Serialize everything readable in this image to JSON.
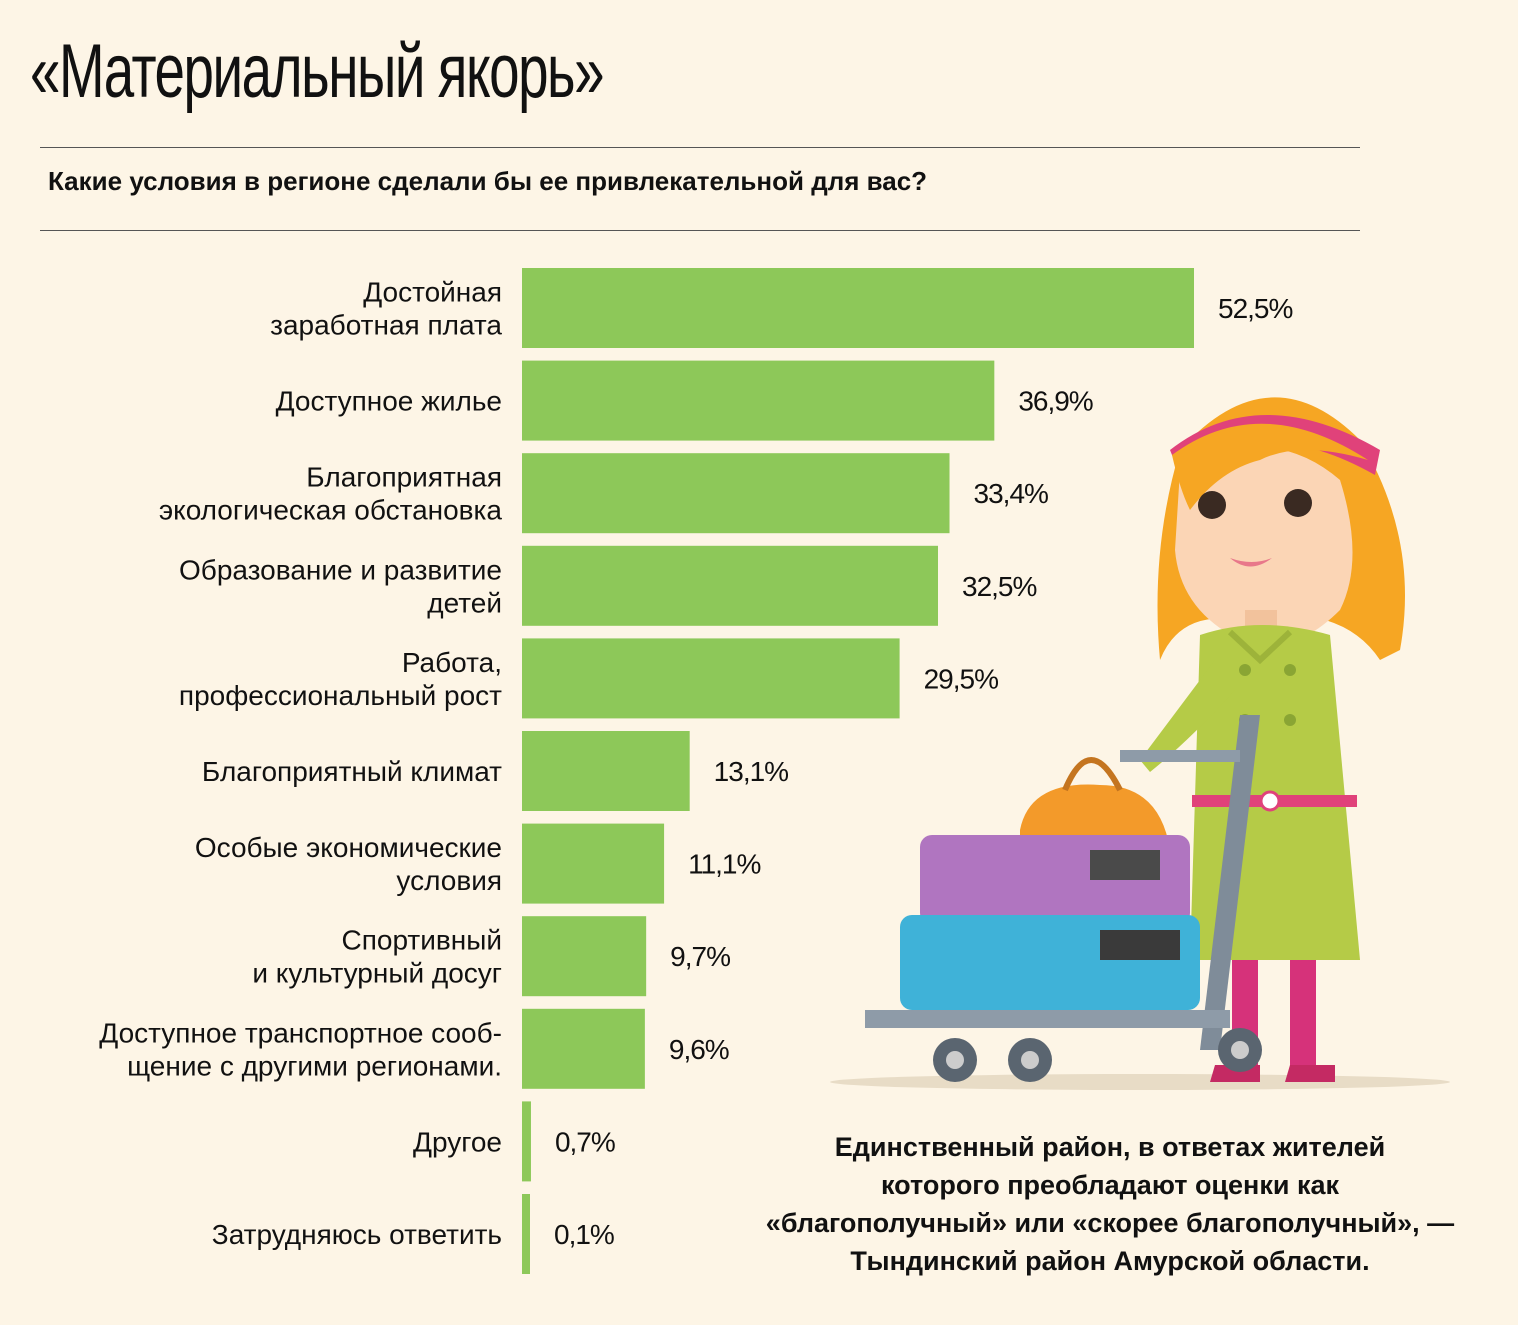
{
  "title": "«Материальный якорь»",
  "subtitle": "Какие условия в регионе сделали бы ее привлекательной для вас?",
  "note": [
    "Единственный район, в ответах жителей",
    "которого преобладают оценки как",
    "«благополучный» или «скорее благополучный», —",
    "Тындинский район Амурской области."
  ],
  "colors": {
    "bar": "#8dc859",
    "background": "#fdf5e6"
  },
  "illustration": "woman-with-luggage-cart",
  "chart_data": {
    "type": "bar",
    "orientation": "horizontal",
    "title": "«Материальный якорь»",
    "subtitle": "Какие условия в регионе сделали бы ее привлекательной для вас?",
    "unit": "%",
    "categories": [
      [
        "Достойная",
        "заработная плата"
      ],
      [
        "Доступное жилье"
      ],
      [
        "Благоприятная",
        "экологическая обстановка"
      ],
      [
        "Образование и развитие",
        "детей"
      ],
      [
        "Работа,",
        "профессиональный рост"
      ],
      [
        "Благоприятный климат"
      ],
      [
        "Особые экономические",
        "условия"
      ],
      [
        "Спортивный",
        "и культурный досуг"
      ],
      [
        "Доступное транспортное сооб-",
        "щение с другими регионами."
      ],
      [
        "Другое"
      ],
      [
        "Затрудняюсь ответить"
      ]
    ],
    "values": [
      52.5,
      36.9,
      33.4,
      32.5,
      29.5,
      13.1,
      11.1,
      9.7,
      9.6,
      0.7,
      0.1
    ],
    "value_labels": [
      "52,5%",
      "36,9%",
      "33,4%",
      "32,5%",
      "29,5%",
      "13,1%",
      "11,1%",
      "9,7%",
      "9,6%",
      "0,7%",
      "0,1%"
    ],
    "xlim": [
      0,
      52.5
    ],
    "grid": false,
    "legend": "none"
  }
}
